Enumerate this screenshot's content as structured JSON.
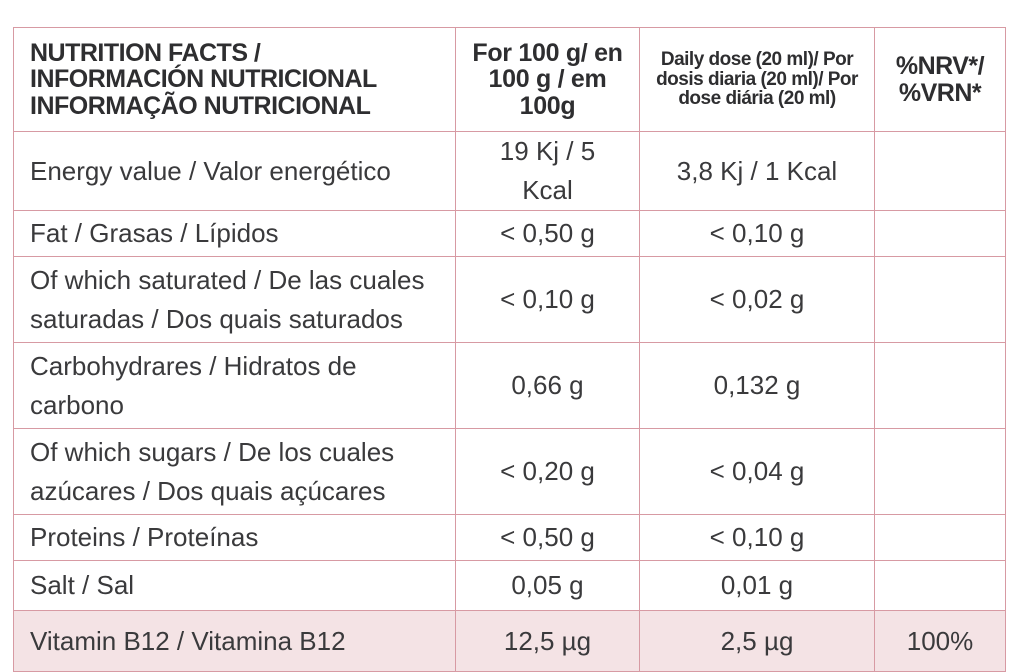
{
  "header": {
    "name": "NUTRITION FACTS / INFORMACIÓN NUTRICIONAL INFORMAÇÃO NUTRICIONAL",
    "per100": "For 100 g/ en 100 g / em 100g",
    "daily": "Daily dose (20 ml)/ Por dosis diaria (20 ml)/ Por dose diária (20 ml)",
    "nrv": "%NRV*/ %VRN*"
  },
  "rows": [
    {
      "name": "Energy value / Valor energético",
      "per100": "19 Kj / 5  Kcal",
      "daily": "3,8 Kj / 1 Kcal",
      "nrv": ""
    },
    {
      "name": "Fat / Grasas / Lípidos",
      "per100": "< 0,50 g",
      "daily": "< 0,10 g",
      "nrv": ""
    },
    {
      "name": "Of which saturated / De las cuales saturadas / Dos quais saturados",
      "per100": "< 0,10 g",
      "daily": "< 0,02 g",
      "nrv": ""
    },
    {
      "name": "Carbohydrares / Hidratos de carbono",
      "per100": "0,66 g",
      "daily": "0,132 g",
      "nrv": ""
    },
    {
      "name": "Of which  sugars / De los cuales azúcares / Dos quais açúcares",
      "per100": "< 0,20 g",
      "daily": "< 0,04 g",
      "nrv": ""
    },
    {
      "name": "Proteins / Proteínas",
      "per100": "< 0,50 g",
      "daily": "< 0,10 g",
      "nrv": ""
    },
    {
      "name": "Salt / Sal",
      "per100": "0,05 g",
      "daily": "0,01 g",
      "nrv": ""
    },
    {
      "name": "Vitamin B12 / Vitamina B12",
      "per100": "12,5 µg",
      "daily": "2,5 µg",
      "nrv": "100%"
    }
  ],
  "colors": {
    "border": "#d79aa3",
    "highlight_row": "#f4e3e5",
    "text": "#3a3a3c"
  }
}
